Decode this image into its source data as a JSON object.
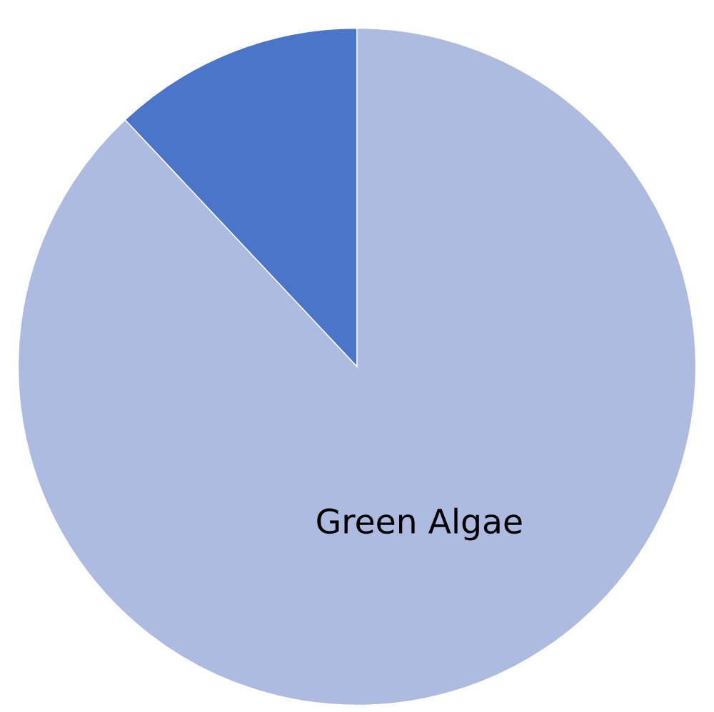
{
  "chart_data": {
    "type": "pie",
    "categories": [
      null,
      "Green Algae"
    ],
    "values": [
      12,
      88
    ],
    "colors": [
      "#4a75c8",
      "#aebbe0"
    ]
  }
}
